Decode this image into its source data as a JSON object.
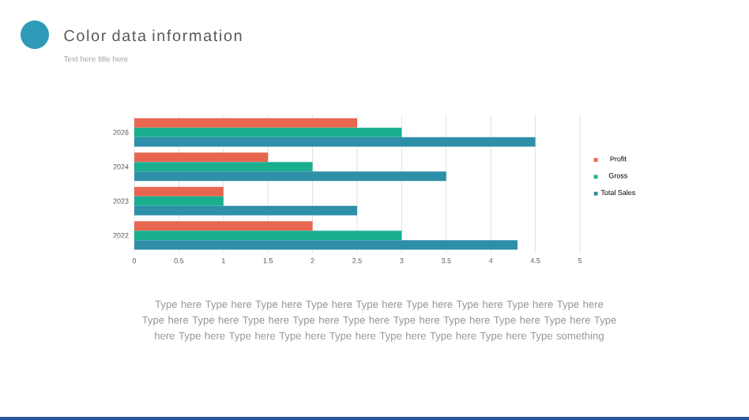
{
  "chart_data": {
    "type": "bar",
    "orientation": "horizontal",
    "title": "Color data information",
    "subtitle": "Text here title here",
    "categories": [
      "2026",
      "2024",
      "2023",
      "2022"
    ],
    "series": [
      {
        "name": "Profit",
        "color": "#e8664f",
        "values": [
          2.5,
          1.5,
          1,
          2
        ]
      },
      {
        "name": "Gross",
        "color": "#1aae8f",
        "values": [
          3,
          2,
          1,
          3
        ]
      },
      {
        "name": "Total Sales",
        "color": "#2e8fa8",
        "values": [
          4.5,
          3.5,
          2.5,
          4.3
        ]
      }
    ],
    "xlim": [
      0,
      5
    ],
    "xticks": [
      0,
      0.5,
      1,
      1.5,
      2,
      2.5,
      3,
      3.5,
      4,
      4.5,
      5
    ],
    "grid": "x",
    "legend": "right",
    "annotations": [
      "Type here Type here Type here Type here Type here Type here Type here Type here Type here Type here Type here Type here Type here Type here Type here Type here Type here Type here Type here Type here Type here Type here Type here Type here Type here Type here Type something"
    ]
  }
}
